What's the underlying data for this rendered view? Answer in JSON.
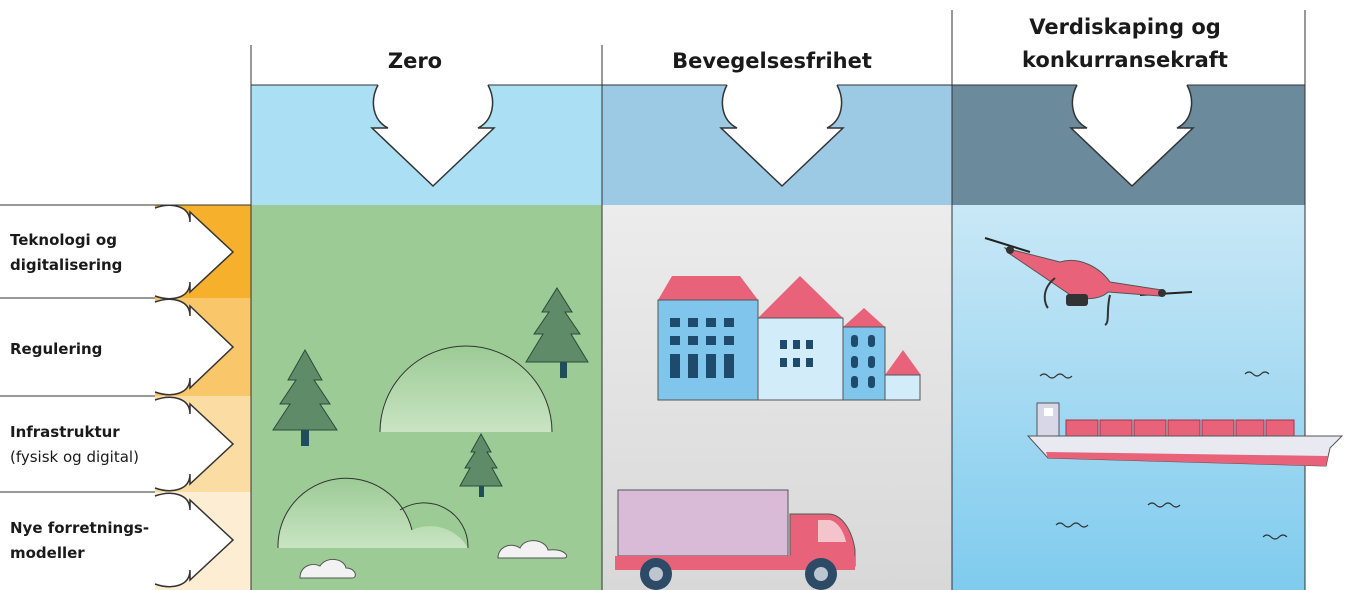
{
  "columns": [
    {
      "title_lines": [
        "Zero"
      ]
    },
    {
      "title_lines": [
        "Bevegelsesfrihet"
      ]
    },
    {
      "title_lines": [
        "Verdiskaping og",
        "konkurransekraft"
      ]
    }
  ],
  "rows": [
    {
      "label_lines": [
        "Teknologi og",
        "digitalisering"
      ]
    },
    {
      "label_lines": [
        "Regulering"
      ]
    },
    {
      "label_lines": [
        "Infrastruktur"
      ],
      "note": "(fysisk og digital)"
    },
    {
      "label_lines": [
        "Nye forretnings-",
        "modeller"
      ]
    }
  ]
}
